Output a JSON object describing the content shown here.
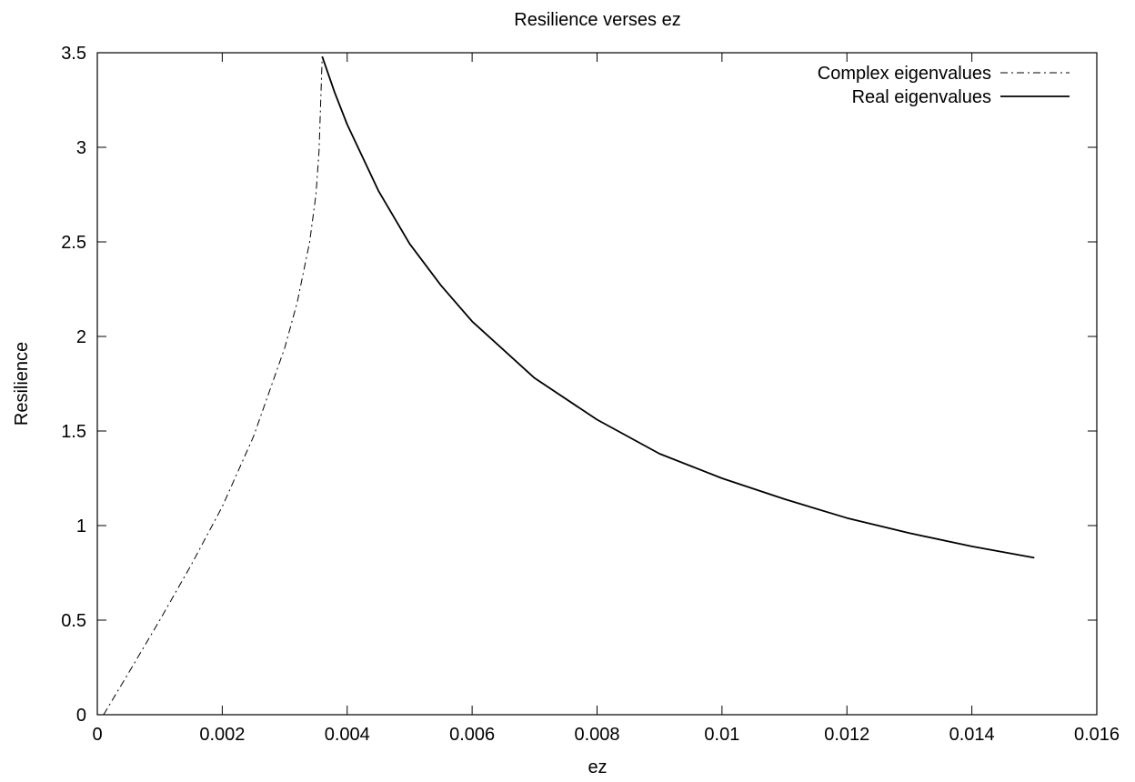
{
  "chart_data": {
    "type": "line",
    "title": "Resilience verses ez",
    "xlabel": "ez",
    "ylabel": "Resilience",
    "xlim": [
      0,
      0.016
    ],
    "ylim": [
      0,
      3.5
    ],
    "x_ticks": [
      0,
      0.002,
      0.004,
      0.006,
      0.008,
      0.01,
      0.012,
      0.014,
      0.016
    ],
    "x_tick_labels": [
      "0",
      "0.002",
      "0.004",
      "0.006",
      "0.008",
      "0.01",
      "0.012",
      "0.014",
      "0.016"
    ],
    "y_ticks": [
      0,
      0.5,
      1,
      1.5,
      2,
      2.5,
      3,
      3.5
    ],
    "y_tick_labels": [
      "0",
      "0.5",
      "1",
      "1.5",
      "2",
      "2.5",
      "3",
      "3.5"
    ],
    "grid": false,
    "legend_position": "top-right",
    "series": [
      {
        "name": "Complex eigenvalues",
        "style": "dash-dot",
        "color": "#000000",
        "x": [
          0.0001,
          0.0005,
          0.001,
          0.0015,
          0.002,
          0.0025,
          0.003,
          0.0032,
          0.0034,
          0.0035,
          0.00355,
          0.0036
        ],
        "y": [
          0.0,
          0.22,
          0.5,
          0.79,
          1.1,
          1.47,
          1.94,
          2.18,
          2.5,
          2.75,
          2.98,
          3.48
        ]
      },
      {
        "name": "Real eigenvalues",
        "style": "solid",
        "color": "#000000",
        "x": [
          0.0036,
          0.0038,
          0.004,
          0.0045,
          0.005,
          0.0055,
          0.006,
          0.007,
          0.008,
          0.009,
          0.01,
          0.011,
          0.012,
          0.013,
          0.014,
          0.015
        ],
        "y": [
          3.48,
          3.29,
          3.12,
          2.77,
          2.49,
          2.27,
          2.08,
          1.78,
          1.56,
          1.38,
          1.25,
          1.14,
          1.04,
          0.96,
          0.89,
          0.83
        ]
      }
    ]
  }
}
